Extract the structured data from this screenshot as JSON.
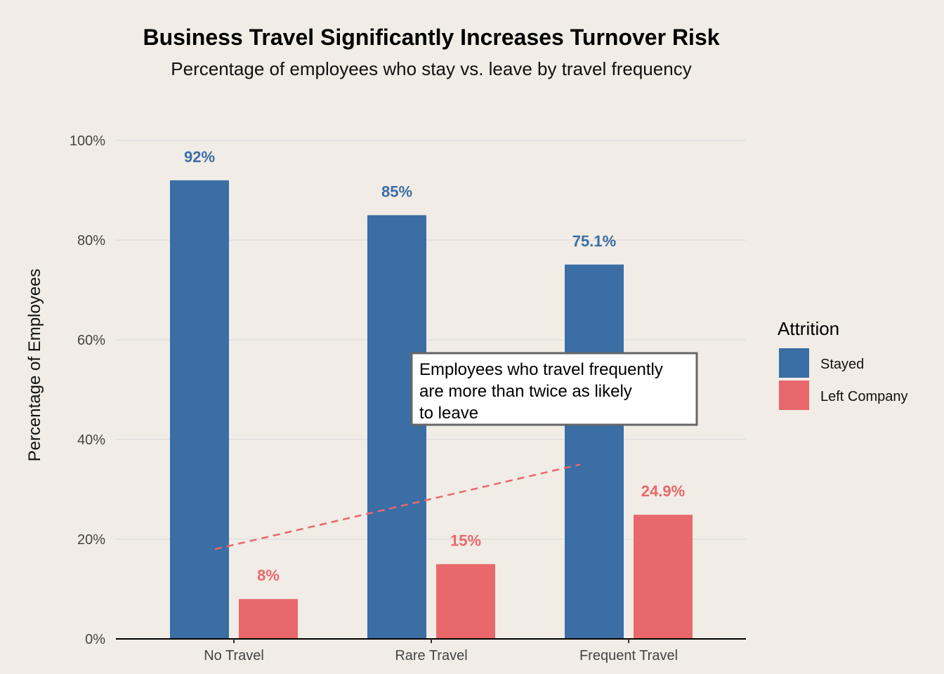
{
  "chart_data": {
    "type": "bar",
    "title": "Business Travel Significantly Increases Turnover Risk",
    "subtitle": "Percentage of employees who stay vs. leave by travel frequency",
    "xlabel": "",
    "ylabel": "Percentage of Employees",
    "ylim": [
      0,
      100
    ],
    "yticks": [
      "0%",
      "20%",
      "40%",
      "60%",
      "80%",
      "100%"
    ],
    "ytick_values": [
      0,
      20,
      40,
      60,
      80,
      100
    ],
    "grid": true,
    "categories": [
      "No Travel",
      "Rare Travel",
      "Frequent Travel"
    ],
    "series": [
      {
        "name": "Stayed",
        "color": "#3a6ea5",
        "values": [
          92,
          85,
          75.1
        ],
        "labels": [
          "92%",
          "85%",
          "75.1%"
        ]
      },
      {
        "name": "Left Company",
        "color": "#e8686c",
        "values": [
          8,
          15,
          24.9
        ],
        "labels": [
          "8%",
          "15%",
          "24.9%"
        ]
      }
    ],
    "legend": {
      "title": "Attrition",
      "placement": "right"
    },
    "trend_line": {
      "color": "#e8686c",
      "style": "dashed",
      "from": [
        0,
        18
      ],
      "to": [
        2,
        35
      ]
    },
    "annotation": [
      "Employees who travel frequently",
      "are more than twice as likely",
      "to leave"
    ]
  }
}
